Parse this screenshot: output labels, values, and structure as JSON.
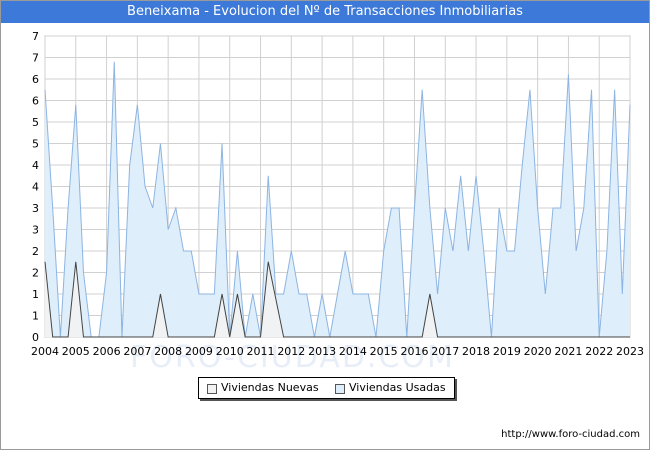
{
  "title": "Beneixama - Evolucion del Nº de Transacciones Inmobiliarias",
  "source": "http://www.foro-ciudad.com",
  "watermark": "FORO-CIUDAD.COM",
  "colors": {
    "title_bg": "#3d79d8",
    "usadas_fill": "#deeefa",
    "usadas_line": "#8db4e2",
    "nuevas_fill": "#f2f2f2",
    "nuevas_line": "#444444",
    "grid": "#d0d0d0"
  },
  "chart_data": {
    "type": "area",
    "y_tick_labels": [
      "0",
      "1",
      "1",
      "2",
      "2",
      "3",
      "3",
      "4",
      "4",
      "5",
      "5",
      "6",
      "6",
      "7",
      "7"
    ],
    "x_tick_labels": [
      "2004",
      "2005",
      "2006",
      "2007",
      "2008",
      "2009",
      "2010",
      "2011",
      "2012",
      "2013",
      "2014",
      "2015",
      "2016",
      "2017",
      "2018",
      "2019",
      "2020",
      "2021",
      "2022",
      "2023"
    ],
    "ylim": [
      0,
      7
    ],
    "grid": true,
    "legend_position": "bottom",
    "series": [
      {
        "name": "Viviendas Nuevas",
        "values": [
          1.75,
          0,
          0,
          0,
          0,
          0,
          0,
          0,
          1.75,
          1.75,
          0,
          0,
          0,
          0,
          0,
          0,
          0,
          0,
          0,
          0,
          0,
          0,
          0,
          0,
          0,
          0,
          0,
          0,
          0,
          0,
          0,
          0,
          0,
          0,
          0,
          0,
          0,
          0,
          0,
          0,
          0,
          0,
          0,
          0,
          0,
          0,
          0,
          0,
          0,
          0,
          0,
          0,
          0,
          0,
          0,
          0,
          0,
          0,
          0,
          0,
          0,
          0,
          0,
          0,
          0,
          0,
          0,
          0,
          0,
          0,
          0,
          0,
          0,
          0,
          0,
          0,
          0,
          0,
          0,
          0,
          0,
          0,
          0,
          0,
          0,
          0,
          0,
          0,
          0,
          0,
          0,
          0,
          0,
          0,
          0,
          0,
          0,
          0,
          0,
          0,
          0,
          0,
          0,
          0,
          0,
          0,
          0,
          0,
          0,
          0,
          0,
          0,
          0,
          0,
          0,
          0,
          0,
          0,
          0,
          0,
          0,
          0,
          0,
          0,
          0,
          0,
          0,
          0,
          0,
          0,
          0,
          0,
          0,
          0,
          0,
          0,
          0,
          0,
          0,
          0,
          0,
          0,
          0,
          0,
          0,
          0,
          0,
          0,
          0,
          0,
          0,
          0,
          0,
          0,
          0,
          0,
          0,
          0,
          0,
          0,
          0,
          0,
          0,
          0,
          0,
          0,
          0,
          0,
          0,
          0,
          0,
          0,
          0,
          0,
          0,
          0,
          0,
          0,
          0,
          0,
          0,
          0,
          0,
          0,
          0,
          0,
          0,
          0,
          0,
          0,
          0,
          0,
          0,
          0,
          0,
          0,
          0,
          0,
          0,
          0,
          0,
          0,
          0,
          0,
          0,
          0,
          0,
          0,
          0,
          0,
          0,
          0,
          0,
          0,
          0,
          0,
          0,
          0,
          0,
          0,
          0,
          0,
          0,
          0,
          0,
          0,
          0,
          0,
          0,
          0,
          0,
          0,
          0,
          0,
          0,
          0,
          0,
          0,
          0,
          0,
          0,
          0,
          0,
          0
        ]
      },
      {
        "name": "Viviendas Usadas",
        "values": []
      }
    ],
    "usadas_points": [
      [
        2004.0,
        5.75
      ],
      [
        2004.25,
        3.0
      ],
      [
        2004.5,
        0.0
      ],
      [
        2004.75,
        3.0
      ],
      [
        2005.0,
        5.4
      ],
      [
        2005.25,
        1.5
      ],
      [
        2005.5,
        0.0
      ],
      [
        2005.75,
        0.0
      ],
      [
        2006.0,
        1.5
      ],
      [
        2006.25,
        6.4
      ],
      [
        2006.5,
        0.0
      ],
      [
        2006.75,
        4.0
      ],
      [
        2007.0,
        5.4
      ],
      [
        2007.25,
        3.5
      ],
      [
        2007.5,
        3.0
      ],
      [
        2007.75,
        4.5
      ],
      [
        2008.0,
        2.5
      ],
      [
        2008.25,
        3.0
      ],
      [
        2008.5,
        2.0
      ],
      [
        2008.75,
        2.0
      ],
      [
        2009.0,
        1.0
      ],
      [
        2009.25,
        1.0
      ],
      [
        2009.5,
        1.0
      ],
      [
        2009.75,
        4.5
      ],
      [
        2010.0,
        0.0
      ],
      [
        2010.25,
        2.0
      ],
      [
        2010.5,
        0.0
      ],
      [
        2010.75,
        1.0
      ],
      [
        2011.0,
        0.0
      ],
      [
        2011.25,
        3.75
      ],
      [
        2011.5,
        1.0
      ],
      [
        2011.75,
        1.0
      ],
      [
        2012.0,
        2.0
      ],
      [
        2012.25,
        1.0
      ],
      [
        2012.5,
        1.0
      ],
      [
        2012.75,
        0.0
      ],
      [
        2013.0,
        1.0
      ],
      [
        2013.25,
        0.0
      ],
      [
        2013.5,
        1.0
      ],
      [
        2013.75,
        2.0
      ],
      [
        2014.0,
        1.0
      ],
      [
        2014.25,
        1.0
      ],
      [
        2014.5,
        1.0
      ],
      [
        2014.75,
        0.0
      ],
      [
        2015.0,
        2.0
      ],
      [
        2015.25,
        3.0
      ],
      [
        2015.5,
        3.0
      ],
      [
        2015.75,
        0.0
      ],
      [
        2016.0,
        3.0
      ],
      [
        2016.25,
        5.75
      ],
      [
        2016.5,
        3.0
      ],
      [
        2016.75,
        1.0
      ],
      [
        2017.0,
        3.0
      ],
      [
        2017.25,
        2.0
      ],
      [
        2017.5,
        3.75
      ],
      [
        2017.75,
        2.0
      ],
      [
        2018.0,
        3.75
      ],
      [
        2018.25,
        2.0
      ],
      [
        2018.5,
        0.0
      ],
      [
        2018.75,
        3.0
      ],
      [
        2019.0,
        2.0
      ],
      [
        2019.25,
        2.0
      ],
      [
        2019.5,
        4.0
      ],
      [
        2019.75,
        5.75
      ],
      [
        2020.0,
        3.0
      ],
      [
        2020.25,
        1.0
      ],
      [
        2020.5,
        3.0
      ],
      [
        2020.75,
        3.0
      ],
      [
        2021.0,
        6.1
      ],
      [
        2021.25,
        2.0
      ],
      [
        2021.5,
        3.0
      ],
      [
        2021.75,
        5.75
      ],
      [
        2022.0,
        0.0
      ],
      [
        2022.25,
        2.0
      ],
      [
        2022.5,
        5.75
      ],
      [
        2022.75,
        1.0
      ],
      [
        2023.0,
        5.4
      ]
    ],
    "nuevas_points": [
      [
        2004.0,
        1.75
      ],
      [
        2004.25,
        0.0
      ],
      [
        2004.75,
        0.0
      ],
      [
        2005.0,
        1.75
      ],
      [
        2005.25,
        0.0
      ],
      [
        2007.5,
        0.0
      ],
      [
        2007.75,
        1.0
      ],
      [
        2008.0,
        0.0
      ],
      [
        2009.5,
        0.0
      ],
      [
        2009.75,
        1.0
      ],
      [
        2010.0,
        0.0
      ],
      [
        2010.25,
        1.0
      ],
      [
        2010.5,
        0.0
      ],
      [
        2011.0,
        0.0
      ],
      [
        2011.25,
        1.75
      ],
      [
        2011.75,
        0.0
      ],
      [
        2016.25,
        0.0
      ],
      [
        2016.5,
        1.0
      ],
      [
        2016.75,
        0.0
      ],
      [
        2023.0,
        0.0
      ]
    ],
    "xlim": [
      2004,
      2023
    ]
  },
  "legend": {
    "nuevas_label": "Viviendas Nuevas",
    "usadas_label": "Viviendas Usadas"
  }
}
